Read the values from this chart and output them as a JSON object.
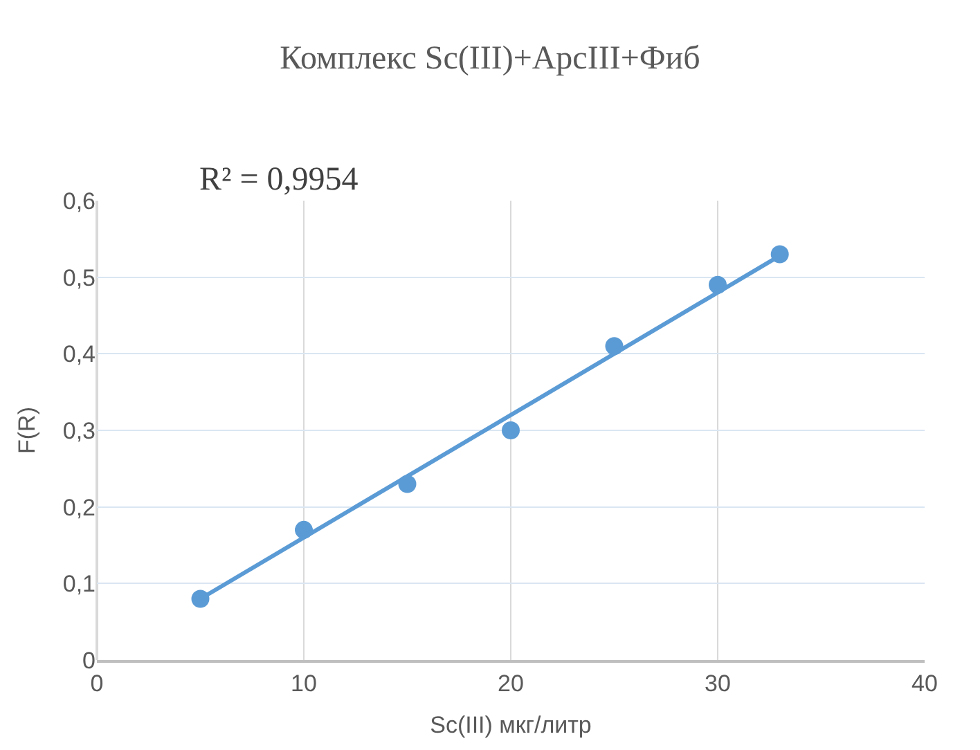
{
  "chart_data": {
    "type": "scatter",
    "title": "Комплекс Sc(III)+АрсIII+Фиб",
    "xlabel": "Sc(III) мкг/литр",
    "ylabel": "F(R)",
    "annotations": [
      "R² = 0,9954"
    ],
    "series": [
      {
        "color": "#5b9bd5",
        "marker": "circle",
        "x": [
          5,
          10,
          15,
          20,
          25,
          30,
          33
        ],
        "values": [
          0.08,
          0.17,
          0.23,
          0.3,
          0.41,
          0.49,
          0.53
        ]
      },
      {
        "type": "line",
        "color": "#5b9bd5",
        "marker": "none",
        "line_style": "solid",
        "x": [
          5,
          33
        ],
        "values": [
          0.08,
          0.528
        ]
      }
    ],
    "xlim": [
      0,
      40
    ],
    "xticks": [
      0,
      10,
      20,
      30,
      40
    ],
    "ylim": [
      0,
      0.6
    ],
    "yticks": [
      {
        "value": 0,
        "label": "0"
      },
      {
        "value": 0.1,
        "label": "0,1"
      },
      {
        "value": 0.2,
        "label": "0,2"
      },
      {
        "value": 0.3,
        "label": "0,3"
      },
      {
        "value": 0.4,
        "label": "0,4"
      },
      {
        "value": 0.5,
        "label": "0,5"
      },
      {
        "value": 0.6,
        "label": "0,6"
      }
    ],
    "grid": true
  }
}
